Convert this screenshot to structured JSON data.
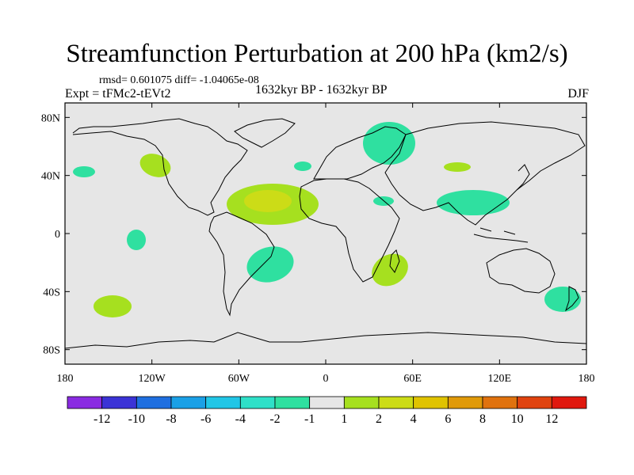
{
  "title": "Streamfunction Perturbation at 200 hPa (km2/s)",
  "stats_line": "rmsd= 0.601075 diff= -1.04065e-08",
  "experiment": "Expt = tFMc2-tEVt2",
  "period": "1632kyr BP - 1632kyr BP",
  "season": "DJF",
  "lat_ticks": [
    "80N",
    "40N",
    "0",
    "40S",
    "80S"
  ],
  "lon_ticks": [
    "180",
    "120W",
    "60W",
    "0",
    "60E",
    "120E",
    "180"
  ],
  "colorbar": {
    "colors": [
      "#8a2be2",
      "#3b33d6",
      "#1f6fe0",
      "#1aa0e6",
      "#21c6e6",
      "#2fe0c8",
      "#2fe0a0",
      "#e6e6e6",
      "#a6e01f",
      "#ccdc17",
      "#e0c300",
      "#e09a0a",
      "#e0720e",
      "#e0430f",
      "#e0180e"
    ],
    "labels": [
      "-12",
      "-10",
      "-8",
      "-6",
      "-4",
      "-2",
      "-1",
      "1",
      "2",
      "4",
      "6",
      "8",
      "10",
      "12"
    ]
  },
  "chart_data": {
    "type": "contour-map",
    "variable": "Streamfunction Perturbation at 200 hPa",
    "units": "km2/s",
    "season": "DJF",
    "projection": "cylindrical equidistant",
    "lon_range": [
      -180,
      180
    ],
    "lat_range": [
      -90,
      90
    ],
    "contour_levels": [
      -12,
      -10,
      -8,
      -6,
      -4,
      -2,
      -1,
      1,
      2,
      4,
      6,
      8,
      10,
      12
    ],
    "anomalies": [
      {
        "name": "north-pacific-west",
        "lon": -165,
        "lat": 43,
        "range": "-2 to -1"
      },
      {
        "name": "pacific-northwest",
        "lon": -128,
        "lat": 48,
        "range": "1 to 2"
      },
      {
        "name": "east-pacific-tropics",
        "lon": -135,
        "lat": -5,
        "range": "-2 to -1"
      },
      {
        "name": "south-pacific",
        "lon": -147,
        "lat": -51,
        "range": "1 to 2"
      },
      {
        "name": "tropical-atlantic",
        "lon": -40,
        "lat": 23,
        "range": "1 to 4"
      },
      {
        "name": "south-atlantic",
        "lon": -37,
        "lat": -25,
        "range": "-2 to -1"
      },
      {
        "name": "north-atlantic-east",
        "lon": -17,
        "lat": 47,
        "range": "-2 to -1"
      },
      {
        "name": "scandinavia",
        "lon": 40,
        "lat": 67,
        "range": "-2 to -1"
      },
      {
        "name": "arabia",
        "lon": 42,
        "lat": 23,
        "range": "-2 to -1"
      },
      {
        "name": "southeast-africa",
        "lon": 42,
        "lat": -25,
        "range": "1 to 2"
      },
      {
        "name": "central-asia",
        "lon": 93,
        "lat": 47,
        "range": "1 to 2"
      },
      {
        "name": "south-asia",
        "lon": 103,
        "lat": 22,
        "range": "-2 to -1"
      },
      {
        "name": "new-zealand",
        "lon": 165,
        "lat": -45,
        "range": "-2 to -1"
      }
    ]
  }
}
